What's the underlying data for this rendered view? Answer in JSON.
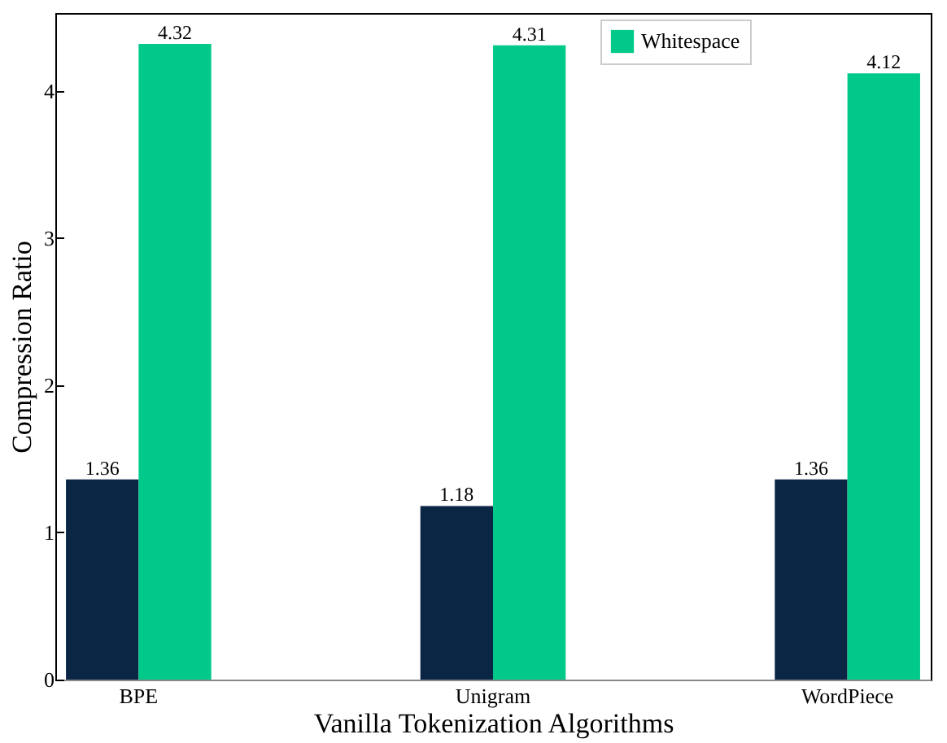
{
  "chart_data": {
    "type": "bar",
    "xlabel": "Vanilla Tokenization Algorithms",
    "ylabel": "Compression Ratio",
    "categories": [
      "BPE",
      "Unigram",
      "WordPiece"
    ],
    "series": [
      {
        "color": "#0b2545",
        "values": [
          1.36,
          1.18,
          1.36
        ]
      },
      {
        "name": "Whitespace",
        "color": "#00c98a",
        "values": [
          4.32,
          4.31,
          4.12
        ]
      }
    ],
    "ylim": [
      0,
      4.53
    ],
    "yticks": [
      0,
      1,
      2,
      3,
      4
    ],
    "data_labels": true,
    "legend": "top right",
    "grid": false
  }
}
